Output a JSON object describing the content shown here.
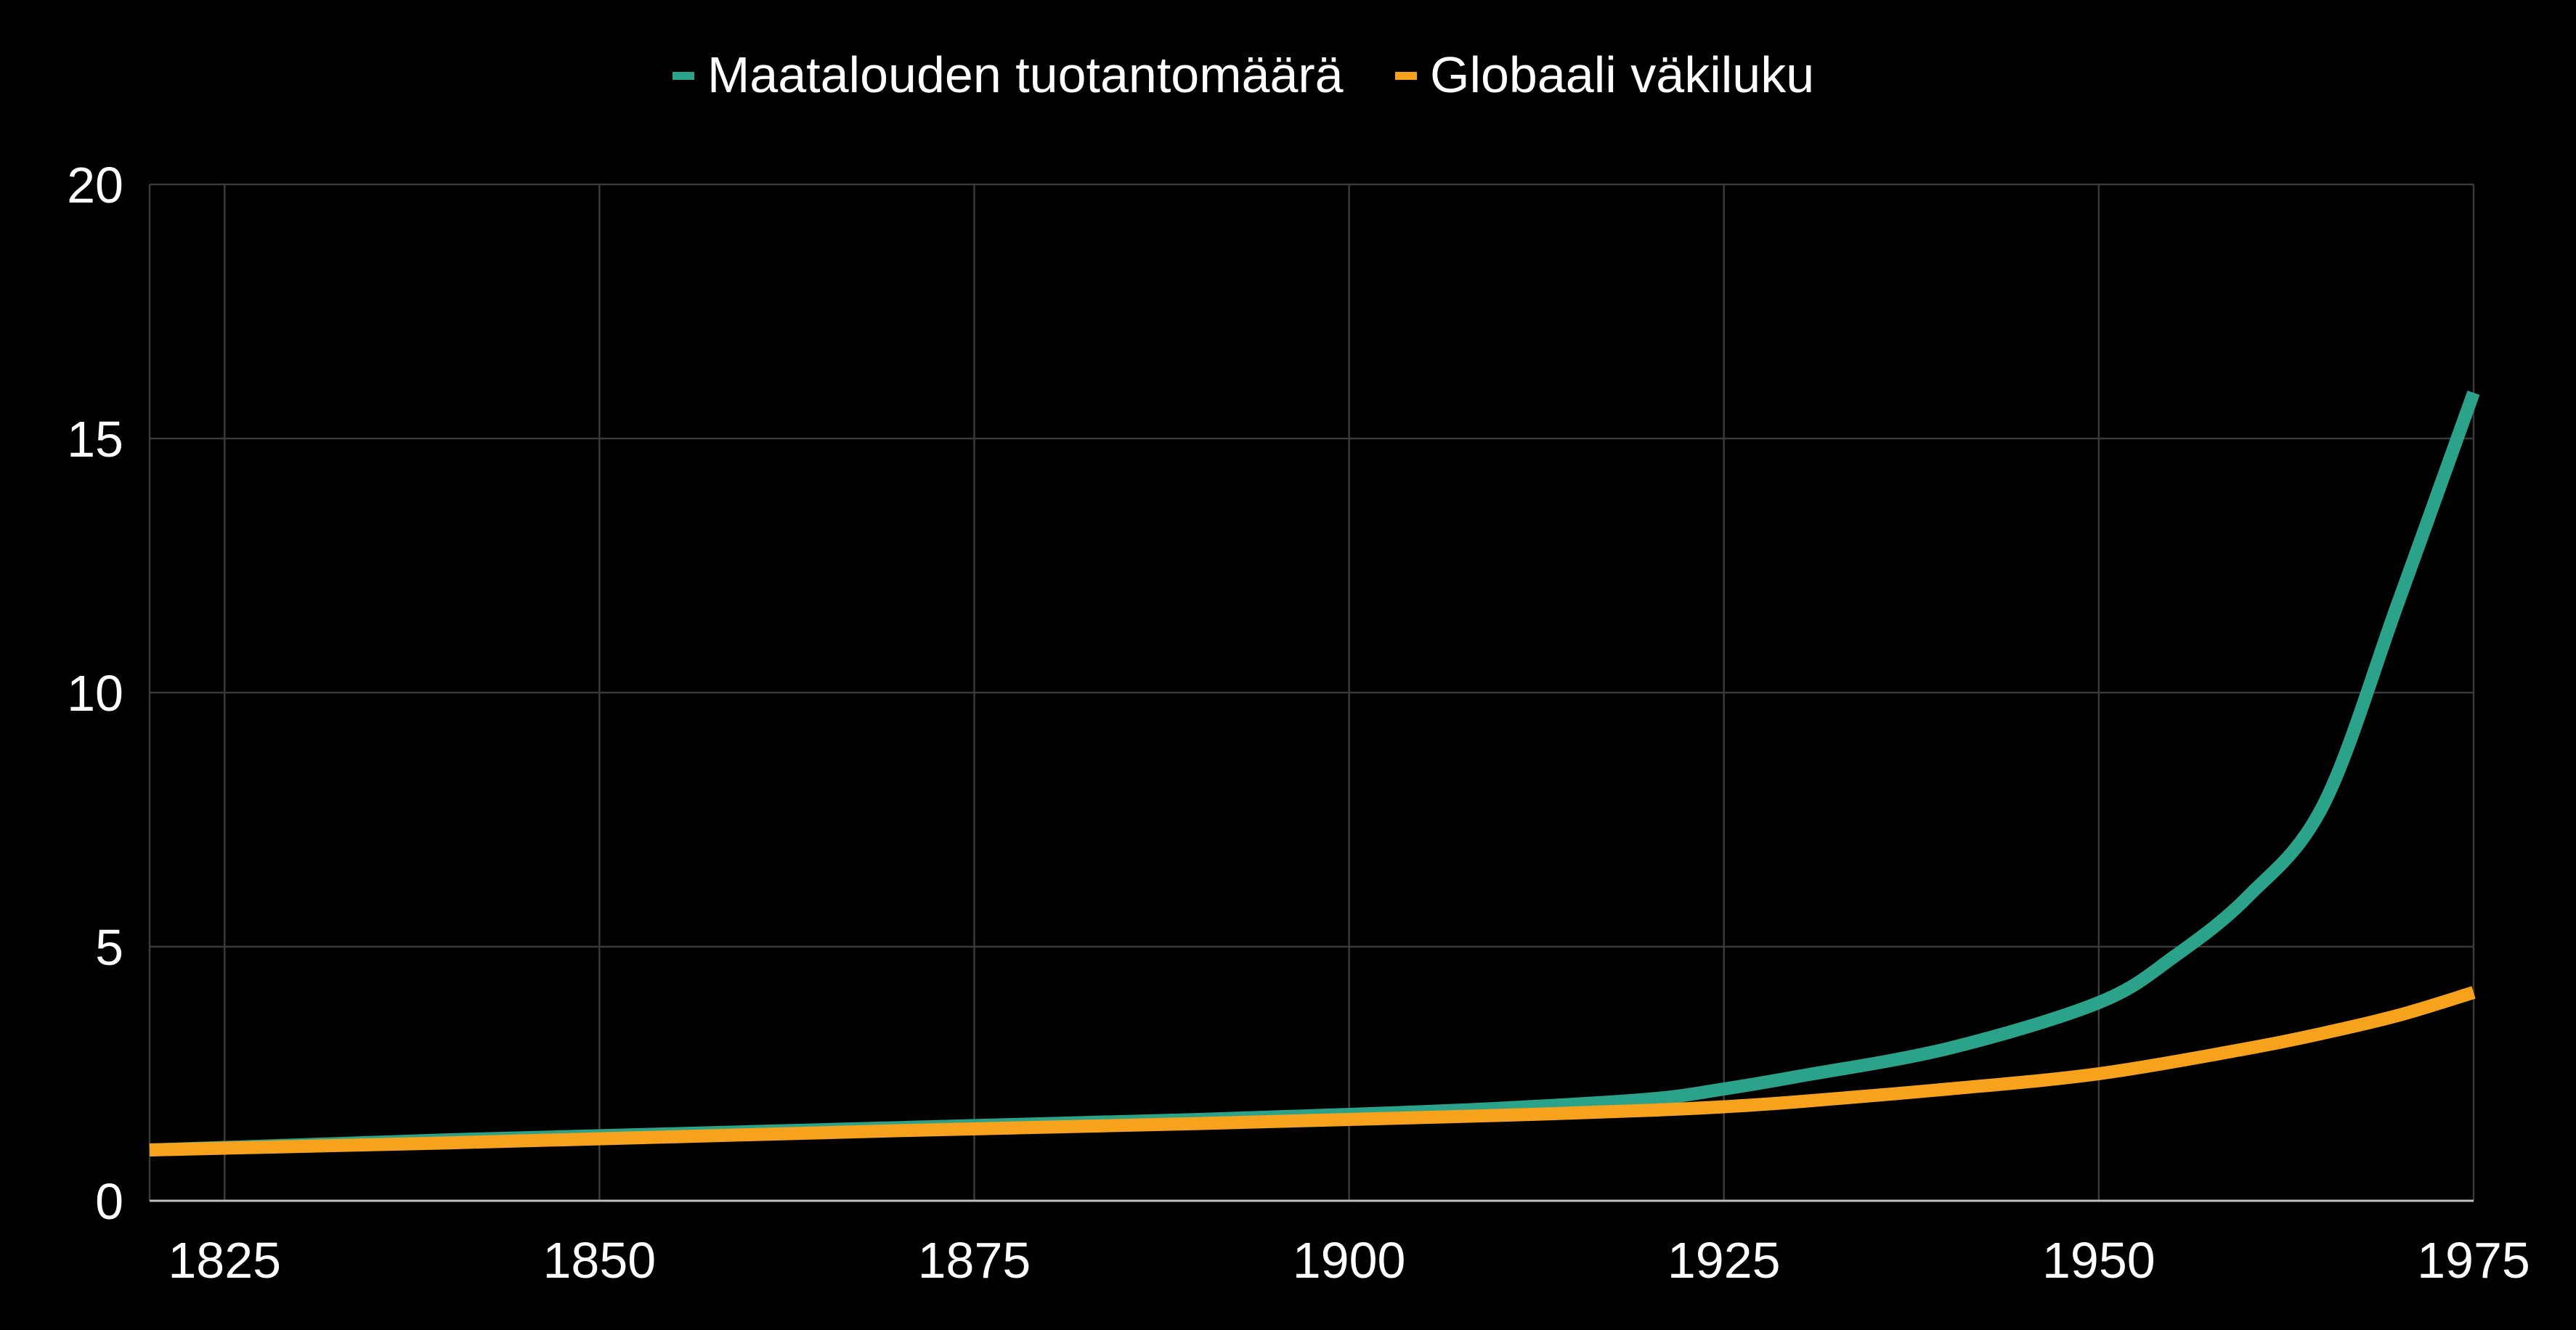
{
  "chart_data": {
    "type": "line",
    "title": "",
    "xlabel": "",
    "ylabel": "",
    "xlim": [
      1820,
      1975
    ],
    "ylim": [
      0,
      20
    ],
    "x_ticks": [
      1825,
      1850,
      1875,
      1900,
      1925,
      1950,
      1975
    ],
    "x_tick_labels": [
      "1825",
      "1850",
      "1875",
      "1900",
      "1925",
      "1950",
      "1975"
    ],
    "y_ticks": [
      0,
      5,
      10,
      15,
      20
    ],
    "y_tick_labels": [
      "0",
      "5",
      "10",
      "15",
      "20"
    ],
    "grid": true,
    "legend_position": "top-center",
    "background": "#000000",
    "series": [
      {
        "name": "Maatalouden tuotantomäärä",
        "color": "#2aa38a",
        "points": [
          [
            1820,
            1.0
          ],
          [
            1830,
            1.1
          ],
          [
            1840,
            1.2
          ],
          [
            1850,
            1.28
          ],
          [
            1860,
            1.36
          ],
          [
            1870,
            1.44
          ],
          [
            1880,
            1.52
          ],
          [
            1890,
            1.6
          ],
          [
            1900,
            1.7
          ],
          [
            1910,
            1.82
          ],
          [
            1920,
            2.0
          ],
          [
            1925,
            2.2
          ],
          [
            1930,
            2.45
          ],
          [
            1940,
            3.0
          ],
          [
            1950,
            3.9
          ],
          [
            1955,
            4.8
          ],
          [
            1960,
            6.0
          ],
          [
            1965,
            7.8
          ],
          [
            1970,
            11.8
          ],
          [
            1975,
            15.9
          ]
        ]
      },
      {
        "name": "Globaali väkiluku",
        "color": "#f6a21c",
        "points": [
          [
            1820,
            1.0
          ],
          [
            1830,
            1.07
          ],
          [
            1840,
            1.14
          ],
          [
            1850,
            1.22
          ],
          [
            1860,
            1.3
          ],
          [
            1870,
            1.38
          ],
          [
            1880,
            1.45
          ],
          [
            1890,
            1.52
          ],
          [
            1900,
            1.6
          ],
          [
            1910,
            1.68
          ],
          [
            1920,
            1.78
          ],
          [
            1925,
            1.85
          ],
          [
            1930,
            1.95
          ],
          [
            1940,
            2.2
          ],
          [
            1950,
            2.5
          ],
          [
            1960,
            3.0
          ],
          [
            1965,
            3.3
          ],
          [
            1970,
            3.65
          ],
          [
            1975,
            4.1
          ]
        ]
      }
    ]
  }
}
